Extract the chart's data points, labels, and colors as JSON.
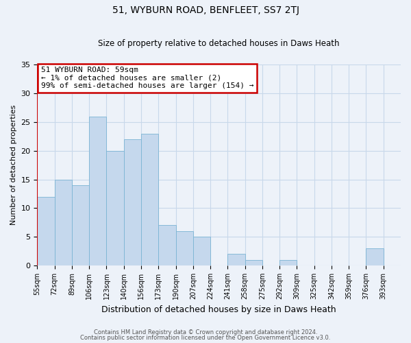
{
  "title": "51, WYBURN ROAD, BENFLEET, SS7 2TJ",
  "subtitle": "Size of property relative to detached houses in Daws Heath",
  "xlabel": "Distribution of detached houses by size in Daws Heath",
  "ylabel": "Number of detached properties",
  "bin_labels": [
    "55sqm",
    "72sqm",
    "89sqm",
    "106sqm",
    "123sqm",
    "140sqm",
    "156sqm",
    "173sqm",
    "190sqm",
    "207sqm",
    "224sqm",
    "241sqm",
    "258sqm",
    "275sqm",
    "292sqm",
    "309sqm",
    "325sqm",
    "342sqm",
    "359sqm",
    "376sqm",
    "393sqm"
  ],
  "bar_values": [
    12,
    15,
    14,
    26,
    20,
    22,
    23,
    7,
    6,
    5,
    0,
    2,
    1,
    0,
    1,
    0,
    0,
    0,
    0,
    3,
    0
  ],
  "bar_color": "#c5d8ed",
  "bar_edge_color": "#7ab4d4",
  "fig_bg_color": "#edf2f9",
  "ax_bg_color": "#edf2f9",
  "annotation_text_line1": "51 WYBURN ROAD: 59sqm",
  "annotation_text_line2": "← 1% of detached houses are smaller (2)",
  "annotation_text_line3": "99% of semi-detached houses are larger (154) →",
  "annotation_box_facecolor": "#ffffff",
  "annotation_box_edgecolor": "#cc0000",
  "vline_color": "#cc0000",
  "ylim": [
    0,
    35
  ],
  "yticks": [
    0,
    5,
    10,
    15,
    20,
    25,
    30,
    35
  ],
  "grid_color": "#c8d8ea",
  "title_fontsize": 10,
  "subtitle_fontsize": 8.5,
  "xlabel_fontsize": 9,
  "ylabel_fontsize": 8,
  "tick_fontsize": 7,
  "ann_fontsize": 8,
  "footer_fontsize": 6,
  "footer_line1": "Contains HM Land Registry data © Crown copyright and database right 2024.",
  "footer_line2": "Contains public sector information licensed under the Open Government Licence v3.0."
}
